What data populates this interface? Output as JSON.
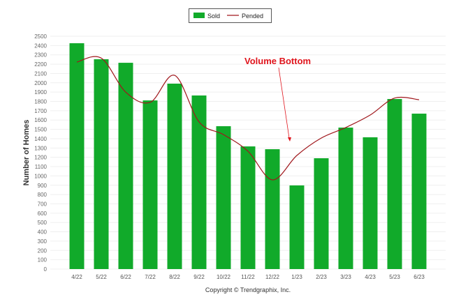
{
  "chart_data": {
    "type": "bar",
    "title": "",
    "xlabel": "",
    "ylabel": "Number of Homes",
    "ylim": [
      0,
      2500
    ],
    "ytick_step": 100,
    "grid": true,
    "legend": {
      "placement": "top-center",
      "entries": [
        "Sold",
        "Pended"
      ]
    },
    "categories": [
      "4/22",
      "5/22",
      "6/22",
      "7/22",
      "8/22",
      "9/22",
      "10/22",
      "11/22",
      "12/22",
      "1/23",
      "2/23",
      "3/23",
      "4/23",
      "5/23",
      "6/23"
    ],
    "series": [
      {
        "name": "Sold",
        "type": "bar",
        "color": "#11aa2a",
        "values": [
          2425,
          2253,
          2215,
          1811,
          1991,
          1864,
          1534,
          1317,
          1287,
          898,
          1190,
          1519,
          1415,
          1826,
          1669
        ]
      },
      {
        "name": "Pended",
        "type": "line",
        "color": "#a0171c",
        "values": [
          2223,
          2265,
          1900,
          1790,
          2080,
          1580,
          1444,
          1265,
          958,
          1220,
          1407,
          1520,
          1654,
          1836,
          1818
        ]
      }
    ],
    "annotations": [
      {
        "text": "Volume Bottom",
        "color": "#e0141c",
        "points_to": "1/23"
      }
    ],
    "footer": "Copyright © Trendgraphix, Inc."
  }
}
